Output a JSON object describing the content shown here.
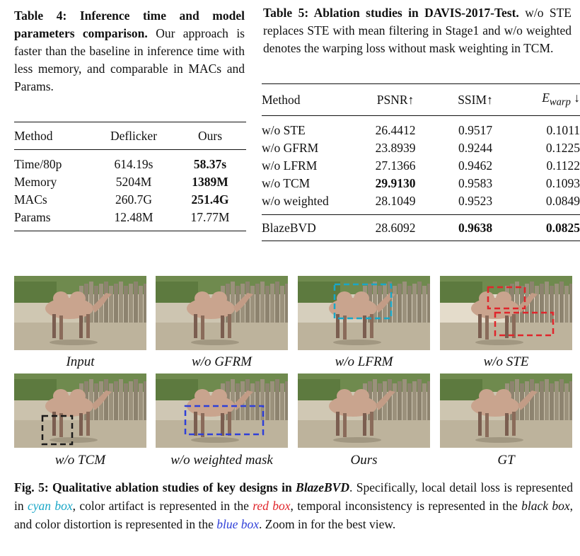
{
  "table4": {
    "caption_bold": "Table 4: Inference time and model parameters comparison.",
    "caption_text": " Our approach is faster than the baseline in inference time with less memory, and comparable in MACs and Params.",
    "headers": [
      "Method",
      "Deflicker",
      "Ours"
    ],
    "rows": [
      {
        "method": "Time/80p",
        "deflicker": "614.19s",
        "ours": "58.37s"
      },
      {
        "method": "Memory",
        "deflicker": "5204M",
        "ours": "1389M"
      },
      {
        "method": "MACs",
        "deflicker": "260.7G",
        "ours": "251.4G"
      },
      {
        "method": "Params",
        "deflicker": "12.48M",
        "ours": "17.77M"
      }
    ]
  },
  "table5": {
    "caption_bold": "Table 5: Ablation studies in DAVIS-2017-Test.",
    "caption_text": " w/o STE replaces STE with mean filtering in Stage1 and w/o weighted denotes the warping loss without mask weighting in TCM.",
    "headers": {
      "method": "Method",
      "psnr": "PSNR↑",
      "ssim": "SSIM↑",
      "ewarp_main": "E",
      "ewarp_sub": "warp",
      "ewarp_arrow": " ↓"
    },
    "rows": [
      {
        "method": "w/o STE",
        "psnr": "26.4412",
        "ssim": "0.9517",
        "ewarp": "0.1011"
      },
      {
        "method": "w/o GFRM",
        "psnr": "23.8939",
        "ssim": "0.9244",
        "ewarp": "0.1225"
      },
      {
        "method": "w/o LFRM",
        "psnr": "27.1366",
        "ssim": "0.9462",
        "ewarp": "0.1122"
      },
      {
        "method": "w/o TCM",
        "psnr": "29.9130",
        "ssim": "0.9583",
        "ewarp": "0.1093"
      },
      {
        "method": "w/o weighted",
        "psnr": "28.1049",
        "ssim": "0.9523",
        "ewarp": "0.0849"
      }
    ],
    "final": {
      "method": "BlazeBVD",
      "psnr": "28.6092",
      "ssim": "0.9638",
      "ewarp": "0.0825"
    }
  },
  "figure": {
    "labels": [
      "Input",
      "w/o GFRM",
      "w/o LFRM",
      "w/o STE",
      "w/o TCM",
      "w/o weighted mask",
      "Ours",
      "GT"
    ],
    "caption_bold_1": "Fig. 5: Qualitative ablation studies of key designs in ",
    "caption_bold_2": "BlazeBVD",
    "caption_1": ". Specifically, local detail loss is represented in ",
    "cyan_text": "cyan box",
    "caption_2": ", color artifact is represented in the ",
    "red_text": "red box",
    "caption_3": ", temporal inconsistency is represented in the ",
    "black_text": "black box",
    "caption_4": ", and color distortion is represented in the ",
    "blue_text": "blue box",
    "caption_5": ". Zoom in for the best view.",
    "colors": {
      "cyan": "#19a7c7",
      "red": "#e0252b",
      "black": "#1a1a1a",
      "blue": "#2f3fd8"
    }
  }
}
